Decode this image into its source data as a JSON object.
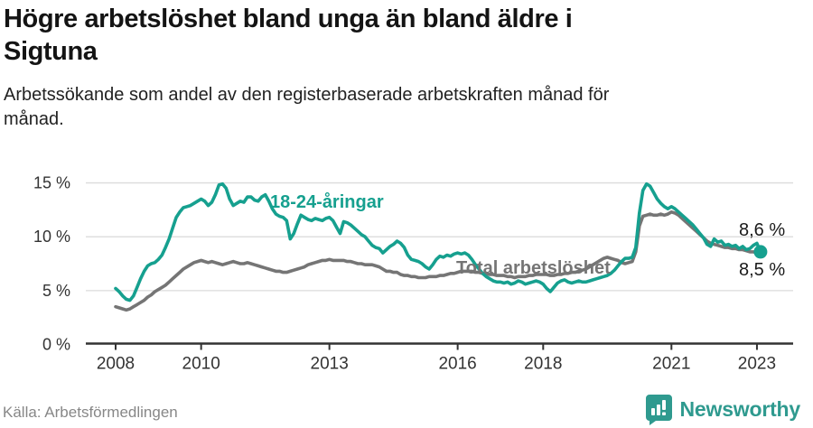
{
  "header": {
    "title": "Högre arbetslöshet bland unga än bland äldre i Sigtuna",
    "subtitle": "Arbetssökande som andel av den registerbaserade arbetskraften månad för månad."
  },
  "annotations": {
    "young_label": "18-24-åringar",
    "total_label": "Total arbetslöshet",
    "end_value_young": "8,6 %",
    "end_value_total": "8,5 %"
  },
  "footer": {
    "source": "Källa: Arbetsförmedlingen",
    "brand": "Newsworthy"
  },
  "colors": {
    "young": "#16a08f",
    "total": "#757575",
    "grid": "#dcdcdc",
    "axis": "#333333",
    "tick_text": "#333333",
    "value_text": "#1a1a1a",
    "muted": "#878787",
    "brand": "#2f9a8f"
  },
  "chart_data": {
    "type": "line",
    "title": "Högre arbetslöshet bland unga än bland äldre i Sigtuna",
    "subtitle": "Arbetssökande som andel av den registerbaserade arbetskraften månad för månad.",
    "unit": "%",
    "x_interval": "monthly",
    "x_start": "2008-01",
    "x_end": "2023-02",
    "x_ticks": [
      2008,
      2010,
      2013,
      2016,
      2018,
      2021,
      2023
    ],
    "y_ticks": [
      {
        "value": 0,
        "label": "0 %"
      },
      {
        "value": 5,
        "label": "5 %"
      },
      {
        "value": 10,
        "label": "10 %"
      },
      {
        "value": 15,
        "label": "15 %"
      }
    ],
    "ylim": [
      0,
      16
    ],
    "grid": true,
    "legend_position": "inline-labels",
    "end_values": {
      "18-24-åringar": "8,6 %",
      "Total arbetslöshet": "8,5 %"
    },
    "series": [
      {
        "name": "Total arbetslöshet",
        "color_key": "total",
        "values": [
          3.5,
          3.4,
          3.3,
          3.2,
          3.3,
          3.5,
          3.7,
          3.9,
          4.1,
          4.4,
          4.6,
          4.9,
          5.1,
          5.3,
          5.5,
          5.8,
          6.1,
          6.4,
          6.7,
          7.0,
          7.2,
          7.4,
          7.6,
          7.7,
          7.8,
          7.7,
          7.6,
          7.7,
          7.6,
          7.5,
          7.4,
          7.5,
          7.6,
          7.7,
          7.6,
          7.5,
          7.5,
          7.6,
          7.5,
          7.4,
          7.3,
          7.2,
          7.1,
          7.0,
          6.9,
          6.8,
          6.8,
          6.7,
          6.7,
          6.8,
          6.9,
          7.0,
          7.1,
          7.2,
          7.4,
          7.5,
          7.6,
          7.7,
          7.8,
          7.8,
          7.9,
          7.8,
          7.8,
          7.8,
          7.8,
          7.7,
          7.7,
          7.6,
          7.5,
          7.5,
          7.4,
          7.4,
          7.4,
          7.3,
          7.2,
          7.0,
          6.8,
          6.8,
          6.7,
          6.7,
          6.5,
          6.4,
          6.4,
          6.3,
          6.3,
          6.2,
          6.2,
          6.2,
          6.3,
          6.3,
          6.3,
          6.4,
          6.4,
          6.5,
          6.6,
          6.6,
          6.7,
          6.8,
          6.8,
          6.8,
          6.8,
          6.7,
          6.7,
          6.6,
          6.6,
          6.5,
          6.5,
          6.4,
          6.4,
          6.4,
          6.3,
          6.3,
          6.2,
          6.3,
          6.3,
          6.3,
          6.4,
          6.4,
          6.5,
          6.5,
          6.5,
          6.5,
          6.4,
          6.4,
          6.5,
          6.5,
          6.6,
          6.6,
          6.7,
          6.7,
          6.8,
          6.9,
          7.0,
          7.2,
          7.4,
          7.6,
          7.8,
          8.0,
          8.1,
          8.0,
          7.9,
          7.8,
          7.6,
          7.5,
          7.6,
          7.7,
          8.6,
          11.0,
          11.9,
          12.0,
          12.1,
          12.0,
          12.0,
          12.1,
          12.0,
          12.1,
          12.3,
          12.2,
          12.0,
          11.7,
          11.4,
          11.1,
          10.8,
          10.5,
          10.2,
          9.9,
          9.6,
          9.4,
          9.3,
          9.2,
          9.1,
          9.0,
          9.0,
          8.9,
          8.9,
          8.8,
          8.8,
          8.7,
          8.6,
          8.6,
          8.5,
          8.5
        ]
      },
      {
        "name": "18-24-åringar",
        "color_key": "young",
        "values": [
          5.2,
          4.9,
          4.5,
          4.2,
          4.1,
          4.5,
          5.3,
          6.1,
          6.8,
          7.3,
          7.5,
          7.6,
          7.9,
          8.3,
          9.0,
          9.8,
          10.8,
          11.8,
          12.3,
          12.7,
          12.8,
          12.9,
          13.1,
          13.3,
          13.5,
          13.3,
          12.9,
          13.2,
          13.9,
          14.8,
          14.9,
          14.5,
          13.5,
          12.9,
          13.1,
          13.3,
          13.2,
          13.7,
          13.7,
          13.4,
          13.3,
          13.7,
          13.9,
          13.3,
          12.6,
          12.1,
          11.9,
          11.8,
          11.5,
          9.8,
          10.3,
          11.2,
          12.0,
          11.8,
          11.6,
          11.5,
          11.7,
          11.6,
          11.5,
          11.7,
          11.8,
          11.5,
          10.9,
          10.3,
          11.4,
          11.3,
          11.1,
          10.8,
          10.5,
          10.2,
          10.0,
          9.6,
          9.2,
          9.0,
          8.9,
          8.5,
          8.8,
          9.1,
          9.3,
          9.6,
          9.4,
          9.0,
          8.3,
          7.9,
          7.8,
          7.7,
          7.5,
          7.2,
          7.0,
          7.4,
          7.9,
          8.2,
          8.1,
          8.3,
          8.2,
          8.4,
          8.5,
          8.4,
          8.5,
          8.3,
          7.9,
          7.4,
          7.0,
          6.6,
          6.3,
          6.1,
          5.9,
          5.8,
          5.8,
          5.7,
          5.8,
          5.6,
          5.7,
          5.9,
          5.8,
          5.6,
          5.7,
          5.8,
          5.9,
          5.8,
          5.6,
          5.2,
          4.9,
          5.3,
          5.7,
          5.9,
          6.0,
          5.8,
          5.7,
          5.8,
          5.9,
          5.8,
          5.8,
          5.9,
          6.0,
          6.1,
          6.2,
          6.3,
          6.4,
          6.6,
          6.9,
          7.3,
          7.7,
          8.0,
          8.0,
          8.1,
          9.0,
          12.2,
          14.3,
          14.9,
          14.7,
          14.1,
          13.5,
          13.1,
          12.8,
          12.6,
          12.8,
          12.6,
          12.3,
          12.0,
          11.7,
          11.4,
          11.1,
          10.7,
          10.3,
          9.9,
          9.3,
          9.1,
          9.8,
          9.5,
          9.6,
          9.2,
          9.3,
          9.1,
          9.2,
          8.9,
          9.1,
          8.8,
          8.9,
          9.2,
          9.4,
          8.6
        ]
      }
    ]
  }
}
